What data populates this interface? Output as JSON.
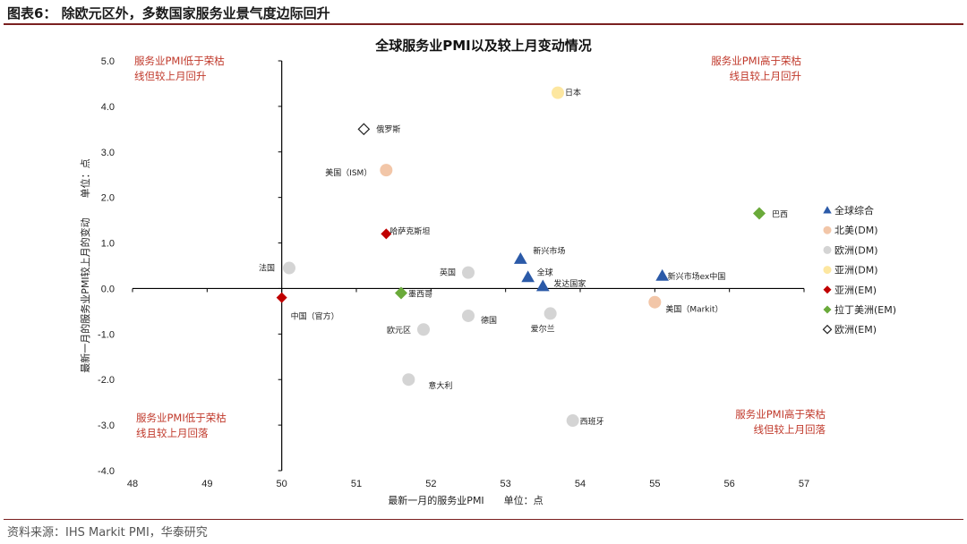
{
  "figure": {
    "title": "图表6： 除欧元区外，多数国家服务业景气度边际回升",
    "source": "资料来源：IHS Markit PMI，华泰研究"
  },
  "chart_data": {
    "type": "scatter",
    "title": "全球服务业PMI以及较上月变动情况",
    "xlabel": "最新一月的服务业PMI　　单位：点",
    "ylabel": "最新一月的服务业PMI较上月的变动　　单位：点",
    "xlim": [
      48,
      57
    ],
    "ylim": [
      -4.0,
      5.0
    ],
    "x_ticks": [
      "48",
      "49",
      "50",
      "51",
      "52",
      "53",
      "54",
      "55",
      "56",
      "57"
    ],
    "y_ticks": [
      "5.0",
      "4.0",
      "3.0",
      "2.0",
      "1.0",
      "0.0",
      "-1.0",
      "-2.0",
      "-3.0",
      "-4.0"
    ],
    "x_ref": 50,
    "y_ref": 0,
    "grid": false,
    "legend_position": "right",
    "groups": [
      {
        "name": "全球综合",
        "marker": "triangle",
        "color": "#2b5aa8"
      },
      {
        "name": "北美(DM)",
        "marker": "circle",
        "color": "#f2c6a8"
      },
      {
        "name": "欧洲(DM)",
        "marker": "circle",
        "color": "#d4d4d4"
      },
      {
        "name": "亚洲(DM)",
        "marker": "circle",
        "color": "#fde7a0"
      },
      {
        "name": "亚洲(EM)",
        "marker": "diamond",
        "color": "#c00000"
      },
      {
        "name": "拉丁美洲(EM)",
        "marker": "diamond",
        "color": "#6aaa3a"
      },
      {
        "name": "欧洲(EM)",
        "marker": "diamond-open",
        "color": "#222222"
      }
    ],
    "points": [
      {
        "label": "日本",
        "group": 3,
        "x": 53.7,
        "y": 4.3
      },
      {
        "label": "俄罗斯",
        "group": 6,
        "x": 51.1,
        "y": 3.5
      },
      {
        "label": "美国（ISM）",
        "group": 1,
        "x": 51.4,
        "y": 2.6
      },
      {
        "label": "巴西",
        "group": 5,
        "x": 56.4,
        "y": 1.65
      },
      {
        "label": "哈萨克斯坦",
        "group": 4,
        "x": 51.4,
        "y": 1.2
      },
      {
        "label": "法国",
        "group": 2,
        "x": 50.1,
        "y": 0.45
      },
      {
        "label": "英国",
        "group": 2,
        "x": 52.5,
        "y": 0.35
      },
      {
        "label": "新兴市场",
        "group": 0,
        "x": 53.2,
        "y": 0.65
      },
      {
        "label": "全球",
        "group": 0,
        "x": 53.3,
        "y": 0.25
      },
      {
        "label": "发达国家",
        "group": 0,
        "x": 53.5,
        "y": 0.05
      },
      {
        "label": "新兴市场ex中国",
        "group": 0,
        "x": 55.1,
        "y": 0.28
      },
      {
        "label": "墨西哥",
        "group": 5,
        "x": 51.6,
        "y": -0.1
      },
      {
        "label": "中国（官方）",
        "group": 4,
        "x": 50.0,
        "y": -0.2
      },
      {
        "label": "美国（Markit）",
        "group": 1,
        "x": 55.0,
        "y": -0.3
      },
      {
        "label": "德国",
        "group": 2,
        "x": 52.5,
        "y": -0.6
      },
      {
        "label": "爱尔兰",
        "group": 2,
        "x": 53.6,
        "y": -0.55
      },
      {
        "label": "欧元区",
        "group": 2,
        "x": 51.9,
        "y": -0.9
      },
      {
        "label": "意大利",
        "group": 2,
        "x": 51.7,
        "y": -2.0
      },
      {
        "label": "西班牙",
        "group": 2,
        "x": 53.9,
        "y": -2.9
      }
    ],
    "quadrant_notes": {
      "top_left": [
        "服务业PMI低于荣枯",
        "线但较上月回升"
      ],
      "top_right": [
        "服务业PMI高于荣枯",
        "线且较上月回升"
      ],
      "bottom_left": [
        "服务业PMI低于荣枯",
        "线且较上月回落"
      ],
      "bottom_right": [
        "服务业PMI高于荣枯",
        "线但较上月回落"
      ]
    }
  }
}
